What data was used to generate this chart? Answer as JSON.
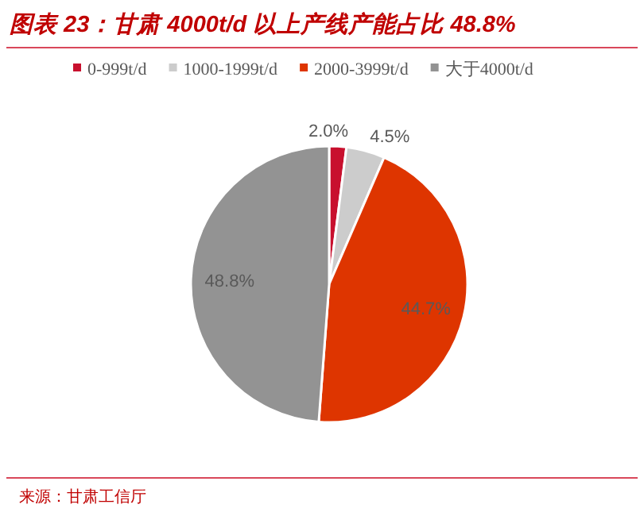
{
  "chart_data": {
    "type": "pie",
    "title": "图表 23：甘肃 4000t/d 以上产线产能占比 48.8%",
    "categories": [
      "0-999t/d",
      "1000-1999t/d",
      "2000-3999t/d",
      "大于4000t/d"
    ],
    "values": [
      2.0,
      4.5,
      44.7,
      48.8
    ],
    "colors": [
      "#c8102e",
      "#cccccc",
      "#de3500",
      "#939393"
    ],
    "value_labels": [
      "2.0%",
      "4.5%",
      "44.7%",
      "48.8%"
    ],
    "legend": "top",
    "annotations": [
      "来源：甘肃工信厅"
    ]
  }
}
